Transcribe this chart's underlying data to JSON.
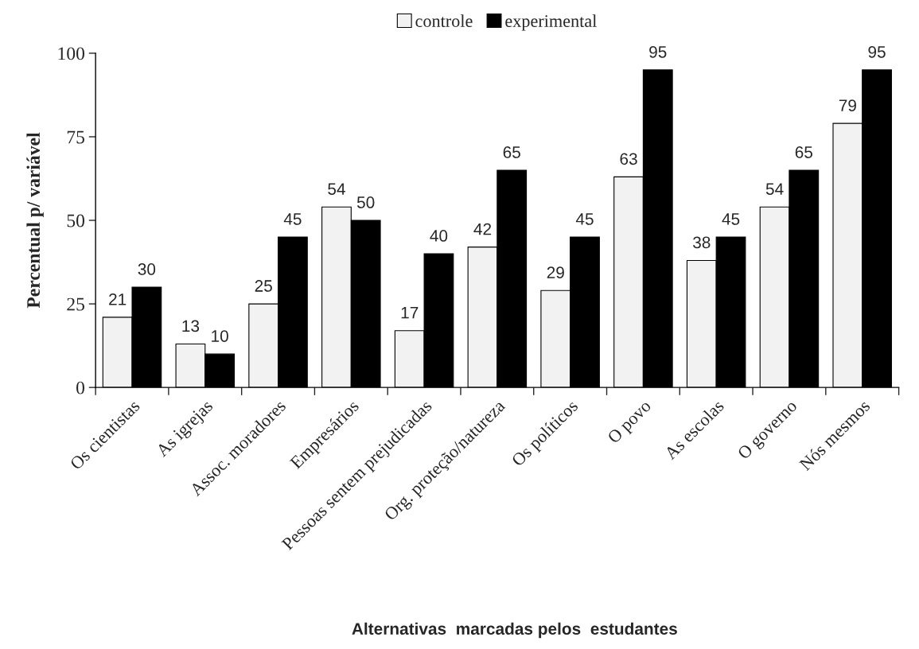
{
  "chart_data": {
    "type": "bar",
    "xlabel": "Alternativas  marcadas pelos  estudantes",
    "ylabel": "Percentual p/ variável",
    "categories": [
      "Os cientistas",
      "As igrejas",
      "Assoc. moradores",
      "Empresários",
      "Pessoas sentem prejudicadas",
      "Org. proteção/natureza",
      "Os políticos",
      "O povo",
      "As escolas",
      "O governo",
      "Nós mesmos"
    ],
    "series": [
      {
        "name": "controle",
        "color": "#f2f2f2",
        "values": [
          21,
          13,
          25,
          54,
          17,
          42,
          29,
          63,
          38,
          54,
          79
        ]
      },
      {
        "name": "experimental",
        "color": "#000000",
        "values": [
          30,
          10,
          45,
          50,
          40,
          65,
          45,
          95,
          45,
          65,
          95
        ]
      }
    ],
    "ylim": [
      0,
      100
    ],
    "yticks": [
      0,
      25,
      50,
      75,
      100
    ],
    "grid": false,
    "legend": "top",
    "data_labels": true
  }
}
